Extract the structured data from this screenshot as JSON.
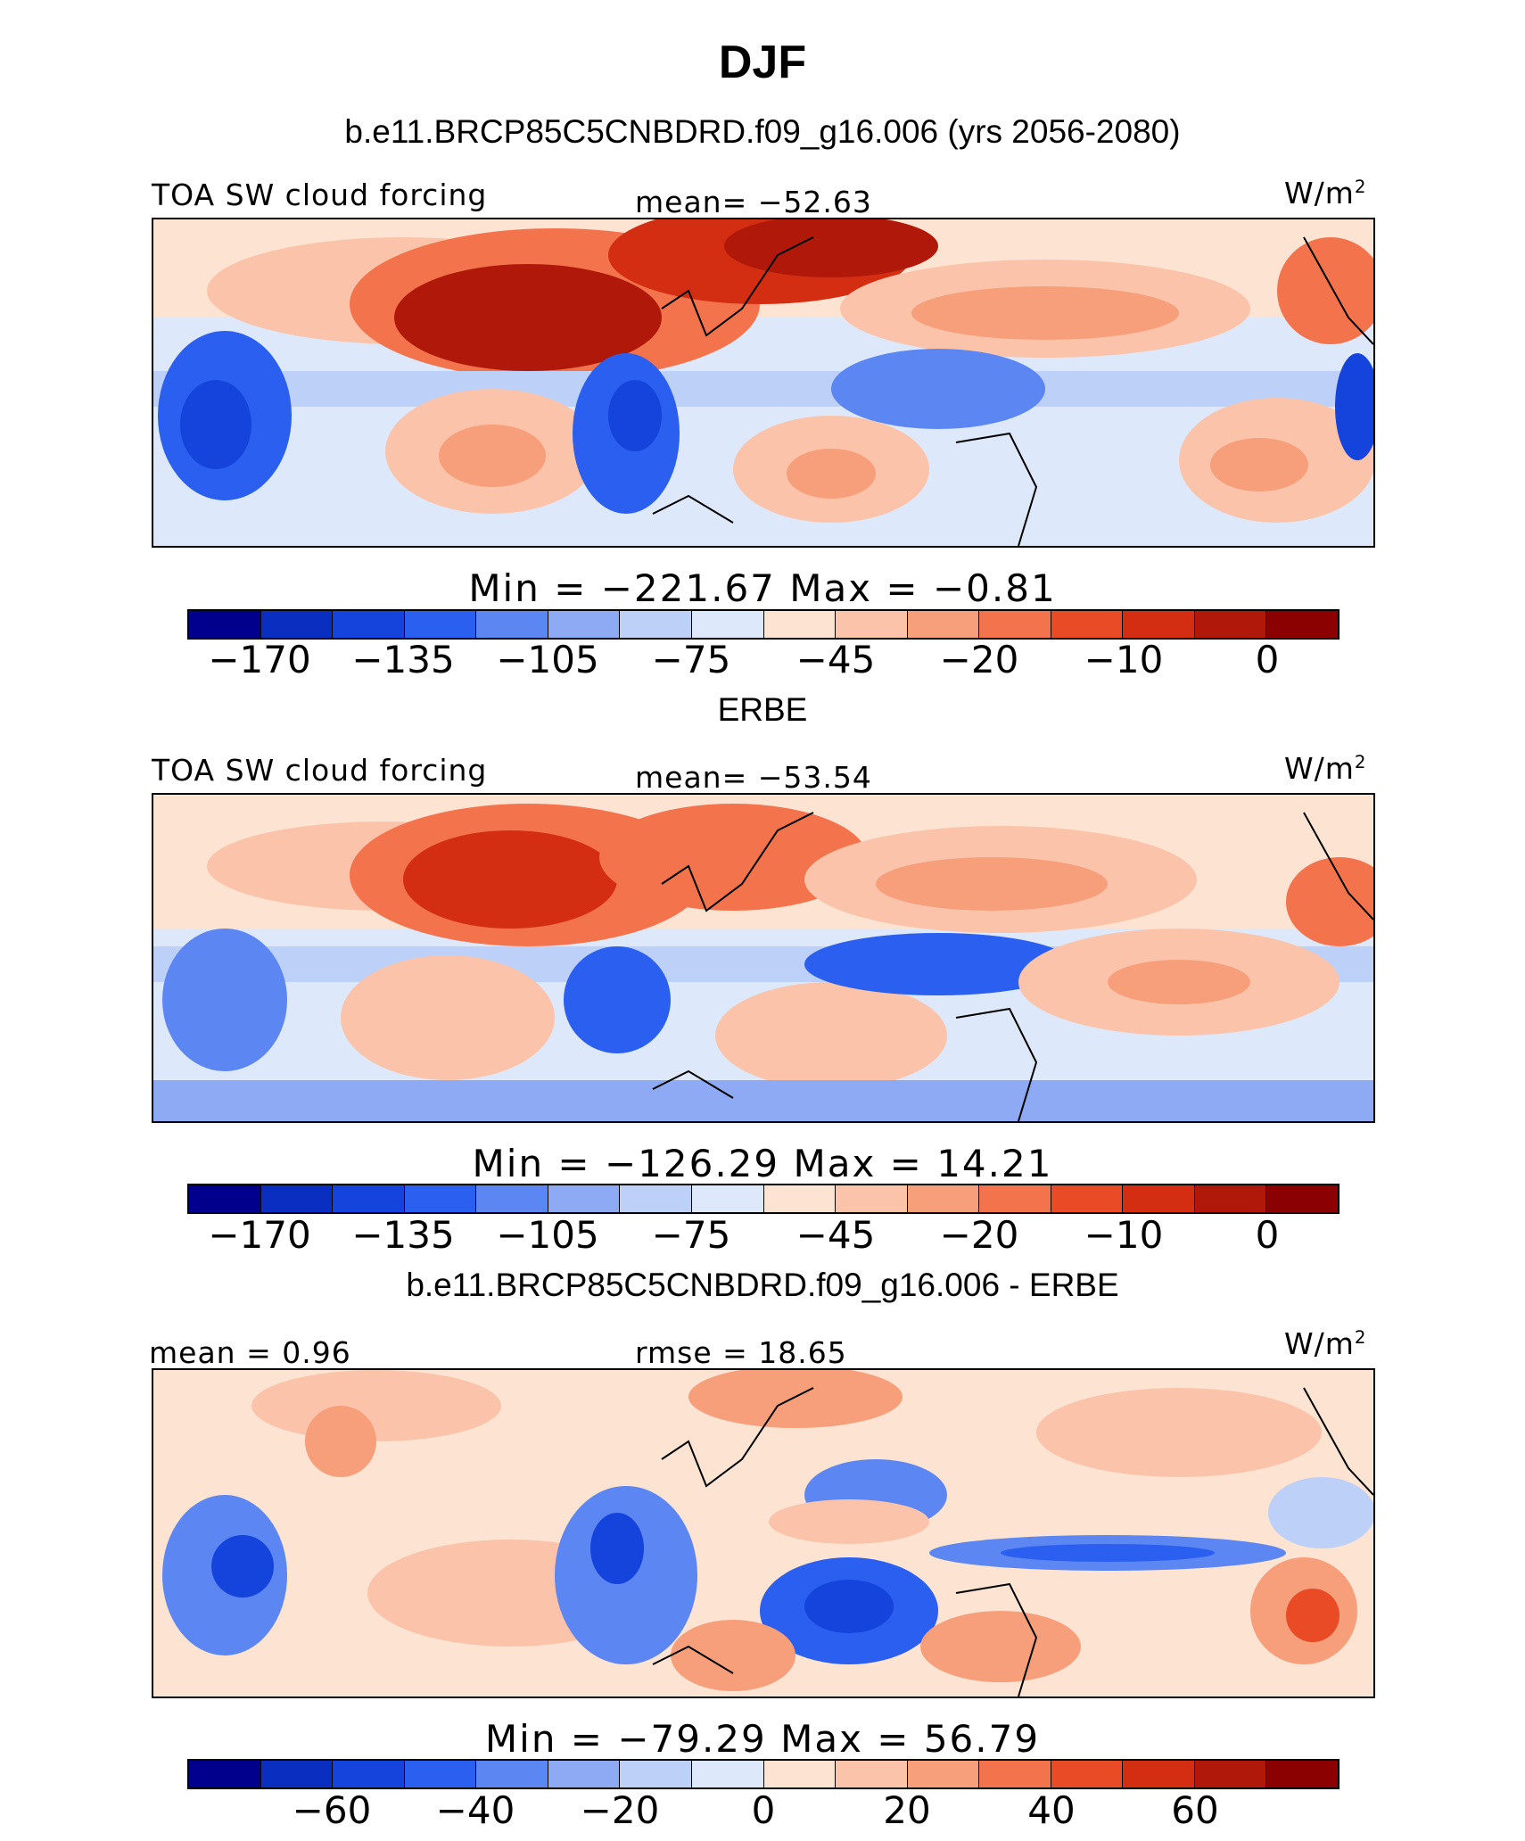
{
  "figure": {
    "title": "DJF"
  },
  "panels": [
    {
      "title": "b.e11.BRCP85C5CNBDRD.f09_g16.006 (yrs 2056-2080)",
      "left_label": "TOA SW cloud forcing",
      "center_label": "mean= −52.63",
      "units_base": "W/m",
      "units_exp": "2",
      "stats": "Min = −221.67 Max = −0.81",
      "colorbar_labels": [
        "−170",
        "−135",
        "−105",
        "−75",
        "−45",
        "−20",
        "−10",
        "0"
      ],
      "palette": "absolute"
    },
    {
      "title": "ERBE",
      "left_label": "TOA SW cloud forcing",
      "center_label": "mean= −53.54",
      "units_base": "W/m",
      "units_exp": "2",
      "stats": "Min = −126.29 Max = 14.21",
      "colorbar_labels": [
        "−170",
        "−135",
        "−105",
        "−75",
        "−45",
        "−20",
        "−10",
        "0"
      ],
      "palette": "absolute"
    },
    {
      "title": "b.e11.BRCP85C5CNBDRD.f09_g16.006 - ERBE",
      "left_label": "mean = 0.96",
      "center_label": "rmse = 18.65",
      "units_base": "W/m",
      "units_exp": "2",
      "stats": "Min = −79.29 Max = 56.79",
      "colorbar_labels": [
        "−60",
        "−40",
        "−20",
        "0",
        "20",
        "40",
        "60"
      ],
      "palette": "difference"
    }
  ],
  "colorbar_colors": [
    "#00008c",
    "#0a2ebf",
    "#1444dc",
    "#2a5fef",
    "#5c86f1",
    "#8eaaf4",
    "#bdd0f7",
    "#dde8fa",
    "#fde3d2",
    "#fbc4aa",
    "#f79f7b",
    "#f2734c",
    "#e84b26",
    "#d42e12",
    "#b0190a",
    "#8b0000"
  ]
}
